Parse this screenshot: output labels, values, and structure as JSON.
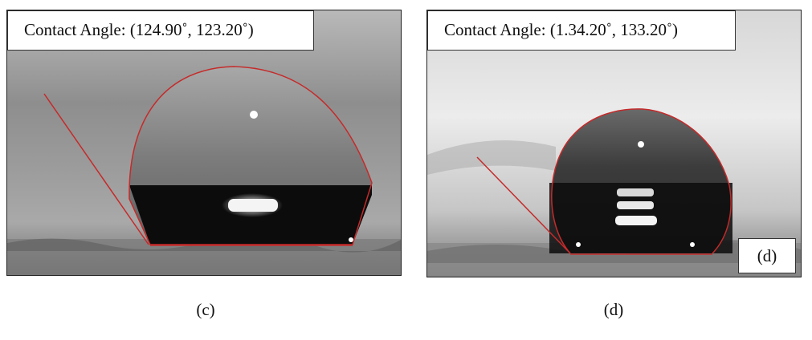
{
  "panels": [
    {
      "id": "c",
      "contact_angle_text": "Contact Angle: (124.90˚, 123.20˚)",
      "caption": "(c)"
    },
    {
      "id": "d",
      "contact_angle_text": "Contact Angle: (1.34.20˚, 133.20˚)",
      "inset_label": "(d)",
      "caption": "(d)"
    }
  ],
  "colors": {
    "fit_line": "#c62a2a",
    "background_gray": "#8f8f8f",
    "droplet_dark": "#0c0c0c"
  }
}
